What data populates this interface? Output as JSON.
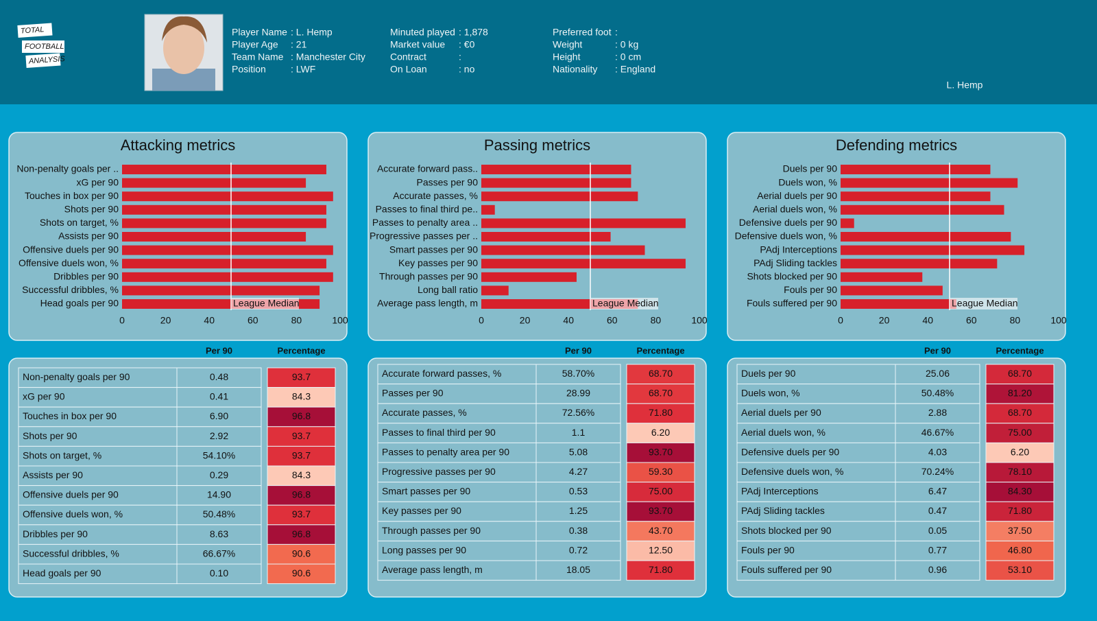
{
  "header": {
    "logo": [
      "TOTAL",
      "FOOTBALL",
      "ANALYSIS"
    ],
    "info": [
      [
        {
          "label": "Player Name",
          "value": ": L. Hemp"
        },
        {
          "label": "Player Age",
          "value": ": 21"
        },
        {
          "label": "Team Name",
          "value": ": Manchester City"
        },
        {
          "label": "Position",
          "value": ": LWF"
        }
      ],
      [
        {
          "label": "Minuted played",
          "value": ": 1,878"
        },
        {
          "label": "Market value",
          "value": ": €0"
        },
        {
          "label": "Contract",
          "value": ":"
        },
        {
          "label": "On Loan",
          "value": ": no"
        }
      ],
      [
        {
          "label": "Preferred foot",
          "value": ":"
        },
        {
          "label": "Weight",
          "value": ": 0 kg"
        },
        {
          "label": "Height",
          "value": ": 0 cm"
        },
        {
          "label": "Nationality",
          "value": ": England"
        }
      ]
    ],
    "player": "L. Hemp"
  },
  "chart_data": [
    {
      "type": "bar",
      "orientation": "horizontal",
      "title": "Attacking metrics",
      "color": "#d7202a",
      "categories": [
        "Non-penalty goals per ..",
        "xG per 90",
        "Touches in box per 90",
        "Shots per 90",
        "Shots on target, %",
        "Assists per 90",
        "Offensive duels per 90",
        "Offensive duels won, %",
        "Dribbles per 90",
        "Successful dribbles, %",
        "Head goals per 90"
      ],
      "values": [
        93.7,
        84.3,
        96.8,
        93.7,
        93.7,
        84.3,
        96.8,
        93.7,
        96.8,
        90.6,
        90.6
      ],
      "xlim": [
        0,
        100
      ],
      "xticks": [
        0,
        20,
        40,
        60,
        80,
        100
      ],
      "median": 50,
      "median_label": "League Median"
    },
    {
      "type": "bar",
      "orientation": "horizontal",
      "title": "Passing metrics",
      "color": "#d7202a",
      "categories": [
        "Accurate forward pass..",
        "Passes per 90",
        "Accurate passes, %",
        "Passes to final third pe..",
        "Passes to penalty area ..",
        "Progressive passes per ..",
        "Smart passes per 90",
        "Key passes per 90",
        "Through passes per 90",
        "Long ball ratio",
        "Average pass length, m"
      ],
      "values": [
        68.7,
        68.7,
        71.8,
        6.2,
        93.7,
        59.3,
        75.0,
        93.7,
        43.7,
        12.5,
        71.8
      ],
      "xlim": [
        0,
        100
      ],
      "xticks": [
        0,
        20,
        40,
        60,
        80,
        100
      ],
      "median": 50,
      "median_label": "League Median"
    },
    {
      "type": "bar",
      "orientation": "horizontal",
      "title": "Defending metrics",
      "color": "#d7202a",
      "categories": [
        "Duels per 90",
        "Duels won, %",
        "Aerial duels per 90",
        "Aerial duels won, %",
        "Defensive duels per 90",
        "Defensive duels won, %",
        "PAdj Interceptions",
        "PAdj Sliding tackles",
        "Shots blocked per 90",
        "Fouls per 90",
        "Fouls suffered per 90"
      ],
      "values": [
        68.7,
        81.2,
        68.7,
        75.0,
        6.2,
        78.1,
        84.3,
        71.8,
        37.5,
        46.8,
        53.1
      ],
      "xlim": [
        0,
        100
      ],
      "xticks": [
        0,
        20,
        40,
        60,
        80,
        100
      ],
      "median": 50,
      "median_label": "League Median"
    }
  ],
  "tables": [
    {
      "columns": [
        "Per 90",
        "Percentage"
      ],
      "rows": [
        [
          "Non-penalty goals per 90",
          "0.48",
          "93.7"
        ],
        [
          "xG per 90",
          "0.41",
          "84.3"
        ],
        [
          "Touches in box per 90",
          "6.90",
          "96.8"
        ],
        [
          "Shots per 90",
          "2.92",
          "93.7"
        ],
        [
          "Shots on target, %",
          "54.10%",
          "93.7"
        ],
        [
          "Assists per 90",
          "0.29",
          "84.3"
        ],
        [
          "Offensive duels per 90",
          "14.90",
          "96.8"
        ],
        [
          "Offensive duels won, %",
          "50.48%",
          "93.7"
        ],
        [
          "Dribbles per 90",
          "8.63",
          "96.8"
        ],
        [
          "Successful dribbles, %",
          "66.67%",
          "90.6"
        ],
        [
          "Head goals per 90",
          "0.10",
          "90.6"
        ]
      ]
    },
    {
      "columns": [
        "Per 90",
        "Percentage"
      ],
      "rows": [
        [
          "Accurate forward passes, %",
          "58.70%",
          "68.70"
        ],
        [
          "Passes per 90",
          "28.99",
          "68.70"
        ],
        [
          "Accurate passes, %",
          "72.56%",
          "71.80"
        ],
        [
          "Passes to final third per 90",
          "1.1",
          "6.20"
        ],
        [
          "Passes to penalty area per 90",
          "5.08",
          "93.70"
        ],
        [
          "Progressive passes per 90",
          "4.27",
          "59.30"
        ],
        [
          "Smart passes per 90",
          "0.53",
          "75.00"
        ],
        [
          "Key passes per 90",
          "1.25",
          "93.70"
        ],
        [
          "Through passes per 90",
          "0.38",
          "43.70"
        ],
        [
          "Long passes per 90",
          "0.72",
          "12.50"
        ],
        [
          "Average pass length, m",
          "18.05",
          "71.80"
        ]
      ]
    },
    {
      "columns": [
        "Per 90",
        "Percentage"
      ],
      "rows": [
        [
          "Duels per 90",
          "25.06",
          "68.70"
        ],
        [
          "Duels won, %",
          "50.48%",
          "81.20"
        ],
        [
          "Aerial duels per 90",
          "2.88",
          "68.70"
        ],
        [
          "Aerial duels won, %",
          "46.67%",
          "75.00"
        ],
        [
          "Defensive duels per 90",
          "4.03",
          "6.20"
        ],
        [
          "Defensive duels won, %",
          "70.24%",
          "78.10"
        ],
        [
          "PAdj Interceptions",
          "6.47",
          "84.30"
        ],
        [
          "PAdj Sliding tackles",
          "0.47",
          "71.80"
        ],
        [
          "Shots blocked per 90",
          "0.05",
          "37.50"
        ],
        [
          "Fouls per 90",
          "0.77",
          "46.80"
        ],
        [
          "Fouls suffered per 90",
          "0.96",
          "53.10"
        ]
      ]
    }
  ]
}
